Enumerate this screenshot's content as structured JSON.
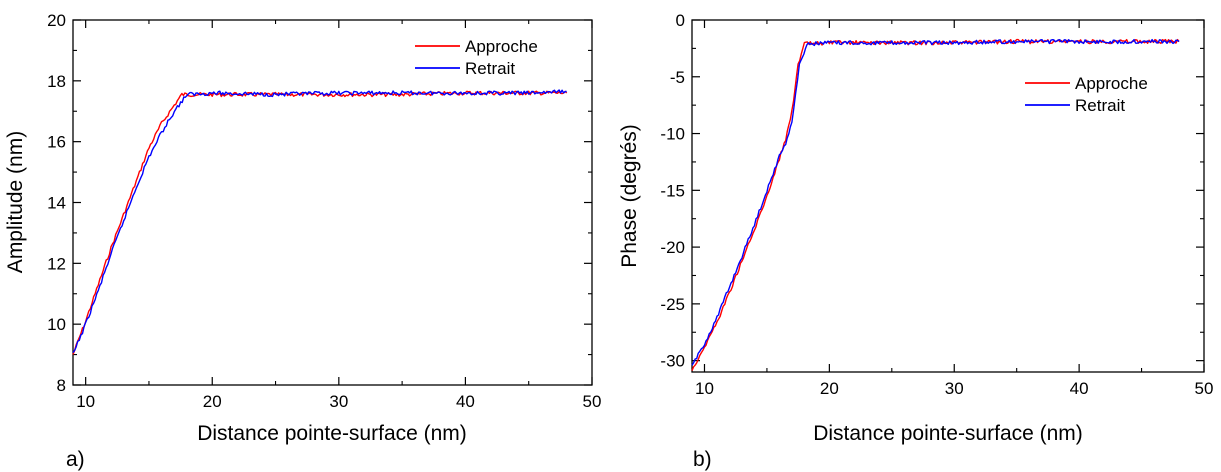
{
  "chart_data": [
    {
      "type": "line",
      "panel_label": "a)",
      "xlabel": "Distance pointe-surface (nm)",
      "ylabel": "Amplitude (nm)",
      "xlim": [
        9,
        50
      ],
      "ylim": [
        8,
        20
      ],
      "xticks": [
        10,
        20,
        30,
        40,
        50
      ],
      "yticks": [
        8,
        10,
        12,
        14,
        16,
        18,
        20
      ],
      "legend_position": "top-right",
      "series": [
        {
          "name": "Approche",
          "color": "#ff0000",
          "x": [
            9,
            10,
            11,
            12,
            13,
            14,
            15,
            16,
            17,
            17.6,
            20,
            25,
            30,
            35,
            40,
            45,
            48
          ],
          "y": [
            9.0,
            10.1,
            11.3,
            12.5,
            13.6,
            14.7,
            15.8,
            16.6,
            17.2,
            17.55,
            17.55,
            17.55,
            17.55,
            17.55,
            17.6,
            17.6,
            17.6
          ]
        },
        {
          "name": "Retrait",
          "color": "#0000ff",
          "x": [
            9,
            10,
            11,
            12,
            13,
            14,
            15,
            16,
            17,
            18,
            20,
            25,
            30,
            35,
            40,
            45,
            48
          ],
          "y": [
            9.0,
            10.0,
            11.1,
            12.3,
            13.4,
            14.5,
            15.5,
            16.3,
            17.0,
            17.55,
            17.6,
            17.55,
            17.6,
            17.6,
            17.6,
            17.6,
            17.65
          ]
        }
      ]
    },
    {
      "type": "line",
      "panel_label": "b)",
      "xlabel": "Distance pointe-surface (nm)",
      "ylabel": "Phase (degrés)",
      "xlim": [
        9,
        50
      ],
      "ylim": [
        -31,
        0
      ],
      "xticks": [
        10,
        20,
        30,
        40,
        50
      ],
      "yticks": [
        0,
        -5,
        -10,
        -15,
        -20,
        -25,
        -30
      ],
      "legend_position": "top-right",
      "series": [
        {
          "name": "Approche",
          "color": "#ff0000",
          "x": [
            9,
            10,
            11,
            12,
            13,
            14,
            15,
            16,
            16.5,
            17,
            17.5,
            18,
            20,
            25,
            30,
            35,
            40,
            45,
            48
          ],
          "y": [
            -30.8,
            -28.8,
            -26.6,
            -24.0,
            -21.2,
            -18.5,
            -15.5,
            -12.2,
            -10.5,
            -8.0,
            -4.0,
            -2.1,
            -2.0,
            -2.0,
            -2.0,
            -1.9,
            -1.9,
            -1.9,
            -1.9
          ]
        },
        {
          "name": "Retrait",
          "color": "#0000ff",
          "x": [
            9,
            10,
            11,
            12,
            13,
            14,
            15,
            16,
            16.5,
            17,
            17.3,
            17.6,
            18.2,
            20,
            25,
            30,
            35,
            40,
            45,
            48
          ],
          "y": [
            -30.5,
            -28.5,
            -26.2,
            -23.5,
            -20.8,
            -18.0,
            -15.0,
            -12.0,
            -10.8,
            -9.0,
            -6.5,
            -4.0,
            -2.1,
            -2.0,
            -2.0,
            -2.0,
            -1.9,
            -1.9,
            -1.9,
            -1.9
          ]
        }
      ]
    }
  ]
}
